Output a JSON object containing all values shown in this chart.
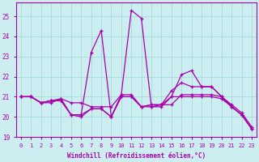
{
  "background_color": "#cceef0",
  "grid_color": "#aadddf",
  "line_color": "#aa00aa",
  "xlabel": "Windchill (Refroidissement éolien,°C)",
  "xlim": [
    -0.5,
    23.5
  ],
  "ylim": [
    19.0,
    25.7
  ],
  "yticks": [
    19,
    20,
    21,
    22,
    23,
    24,
    25
  ],
  "xticks": [
    0,
    1,
    2,
    3,
    4,
    5,
    6,
    7,
    8,
    9,
    10,
    11,
    12,
    13,
    14,
    15,
    16,
    17,
    18,
    19,
    20,
    21,
    22,
    23
  ],
  "series": [
    {
      "x": [
        0,
        1,
        2,
        3,
        4,
        5,
        6,
        7,
        8,
        9,
        10,
        11,
        12,
        13,
        14,
        15,
        16,
        17,
        18,
        19,
        20,
        21,
        22,
        23
      ],
      "y": [
        21.0,
        21.0,
        20.7,
        20.7,
        20.9,
        20.7,
        20.7,
        20.5,
        20.5,
        20.5,
        21.1,
        25.3,
        24.9,
        20.5,
        20.6,
        20.6,
        21.1,
        21.1,
        21.1,
        21.1,
        21.0,
        20.5,
        20.1,
        19.4
      ]
    },
    {
      "x": [
        0,
        1,
        2,
        3,
        4,
        5,
        6,
        7,
        8,
        9,
        10,
        11,
        12,
        13,
        14,
        15,
        16,
        17,
        18,
        19,
        20,
        21,
        22,
        23
      ],
      "y": [
        21.0,
        21.0,
        20.7,
        20.8,
        20.8,
        20.1,
        20.1,
        23.2,
        24.3,
        20.0,
        21.1,
        21.1,
        20.5,
        20.6,
        20.6,
        21.0,
        22.1,
        22.3,
        21.5,
        21.5,
        21.0,
        20.5,
        20.1,
        19.4
      ]
    },
    {
      "x": [
        0,
        1,
        2,
        3,
        4,
        5,
        6,
        7,
        8,
        9,
        10,
        11,
        12,
        13,
        14,
        15,
        16,
        17,
        18,
        19,
        20,
        21,
        22,
        23
      ],
      "y": [
        21.0,
        21.0,
        20.7,
        20.8,
        20.9,
        20.1,
        20.0,
        20.4,
        20.4,
        20.0,
        21.0,
        21.0,
        20.5,
        20.6,
        20.6,
        21.3,
        21.7,
        21.5,
        21.5,
        21.5,
        21.0,
        20.6,
        20.2,
        19.5
      ]
    },
    {
      "x": [
        0,
        1,
        2,
        3,
        4,
        5,
        6,
        7,
        8,
        9,
        10,
        11,
        12,
        13,
        14,
        15,
        16,
        17,
        18,
        19,
        20,
        21,
        22,
        23
      ],
      "y": [
        21.0,
        21.0,
        20.7,
        20.8,
        20.8,
        20.1,
        20.1,
        20.4,
        20.4,
        20.0,
        21.0,
        21.0,
        20.5,
        20.5,
        20.5,
        21.0,
        21.0,
        21.0,
        21.0,
        21.0,
        20.9,
        20.5,
        20.1,
        19.4
      ]
    }
  ]
}
